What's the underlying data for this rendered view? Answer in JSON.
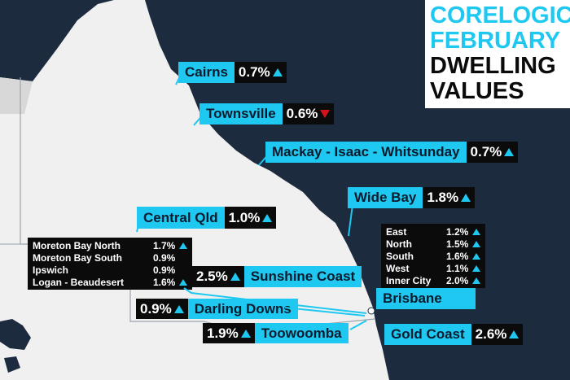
{
  "title": {
    "line1": "CORELOGIC",
    "line2": "FEBRUARY",
    "line3": "DWELLING",
    "line4": "VALUES",
    "accent": "#1ec8f0"
  },
  "colors": {
    "label_bg": "#1ec8f0",
    "value_bg": "#0b0b0b",
    "up": "#1ec8f0",
    "down": "#d3121b",
    "ocean": "#1d2b3f",
    "land": "#f2f2f2"
  },
  "labels": {
    "cairns": {
      "name": "Cairns",
      "value": "0.7%",
      "trend": "up"
    },
    "townsville": {
      "name": "Townsville",
      "value": "0.6%",
      "trend": "down"
    },
    "mackay": {
      "name": "Mackay - Isaac - Whitsunday",
      "value": "0.7%",
      "trend": "up"
    },
    "wide_bay": {
      "name": "Wide Bay",
      "value": "1.8%",
      "trend": "up"
    },
    "central_qld": {
      "name": "Central Qld",
      "value": "1.0%",
      "trend": "up"
    },
    "sunshine_coast": {
      "name": "Sunshine Coast",
      "value": "2.5%",
      "trend": "up"
    },
    "brisbane": {
      "name": "Brisbane"
    },
    "darling_downs": {
      "name": "Darling Downs",
      "value": "0.9%",
      "trend": "up"
    },
    "toowoomba": {
      "name": "Toowoomba",
      "value": "1.9%",
      "trend": "up"
    },
    "gold_coast": {
      "name": "Gold Coast",
      "value": "2.6%",
      "trend": "up"
    }
  },
  "brisbane_breakdown": [
    {
      "name": "East",
      "value": "1.2%",
      "trend": "up"
    },
    {
      "name": "North",
      "value": "1.5%",
      "trend": "up"
    },
    {
      "name": "South",
      "value": "1.6%",
      "trend": "up"
    },
    {
      "name": "West",
      "value": "1.1%",
      "trend": "up"
    },
    {
      "name": "Inner City",
      "value": "2.0%",
      "trend": "up"
    }
  ],
  "moreton_breakdown": [
    {
      "name": "Moreton Bay North",
      "value": "1.7%",
      "trend": "up"
    },
    {
      "name": "Moreton Bay South",
      "value": "0.9%",
      "trend": ""
    },
    {
      "name": "Ipswich",
      "value": "0.9%",
      "trend": ""
    },
    {
      "name": "Logan - Beaudesert",
      "value": "1.6%",
      "trend": "up"
    }
  ]
}
